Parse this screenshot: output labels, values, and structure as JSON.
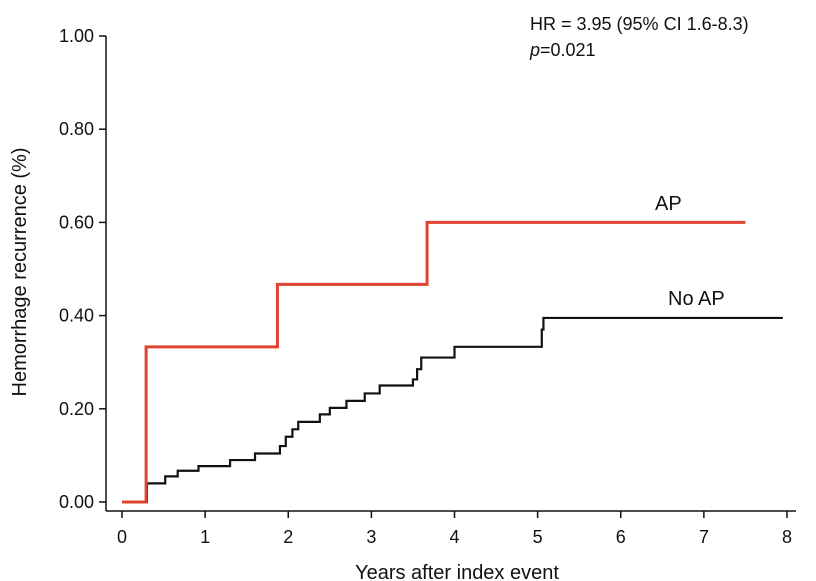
{
  "chart_data": {
    "type": "line",
    "step": true,
    "xlabel": "Years after index event",
    "ylabel": "Hemorrhage recurrence (%)",
    "xlim": [
      0,
      8
    ],
    "ylim": [
      0,
      1
    ],
    "xticks": [
      "0",
      "1",
      "2",
      "3",
      "4",
      "5",
      "6",
      "7",
      "8"
    ],
    "yticks": [
      "0.00",
      "0.20",
      "0.40",
      "0.60",
      "0.80",
      "1.00"
    ],
    "grid": false,
    "annotation": {
      "hr": "HR = 3.95 (95% CI 1.6-8.3)",
      "p_symbol": "p",
      "p_value": "=0.021"
    },
    "series": [
      {
        "name": "AP",
        "color": "#e0442e",
        "x": [
          0,
          0.29,
          0.29,
          1.87,
          1.87,
          3.67,
          3.67,
          7.5
        ],
        "y": [
          0,
          0,
          0.333,
          0.333,
          0.467,
          0.467,
          0.6,
          0.6
        ]
      },
      {
        "name": "No AP",
        "color": "#111111",
        "x": [
          0,
          0.3,
          0.52,
          0.67,
          0.92,
          1.3,
          1.6,
          1.9,
          1.97,
          2.05,
          2.12,
          2.38,
          2.5,
          2.7,
          2.92,
          3.1,
          3.5,
          3.55,
          3.6,
          4.0,
          5.05,
          5.07,
          7.95
        ],
        "y": [
          0,
          0.04,
          0.055,
          0.067,
          0.077,
          0.09,
          0.104,
          0.12,
          0.14,
          0.156,
          0.172,
          0.188,
          0.202,
          0.217,
          0.233,
          0.25,
          0.263,
          0.285,
          0.31,
          0.333,
          0.37,
          0.395,
          0.395
        ]
      }
    ]
  }
}
